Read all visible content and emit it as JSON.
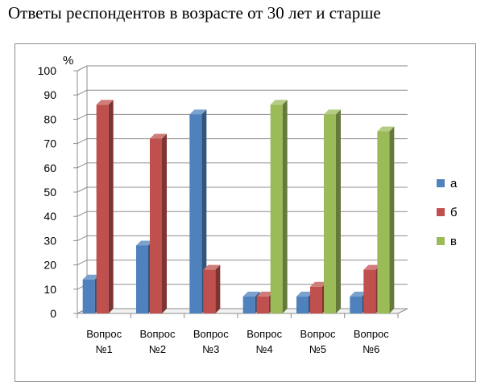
{
  "title": "Ответы респондентов в возрасте от 30 лет и старше",
  "chart_data": {
    "type": "bar",
    "title": "Ответы респондентов в возрасте от 30 лет и старше",
    "ylabel": "%",
    "xlabel": "",
    "ylim": [
      0,
      100
    ],
    "yticks": [
      0,
      10,
      20,
      30,
      40,
      50,
      60,
      70,
      80,
      90,
      100
    ],
    "grid": true,
    "legend_position": "right",
    "categories": [
      [
        "Вопрос",
        "№1"
      ],
      [
        "Вопрос",
        "№2"
      ],
      [
        "Вопрос",
        "№3"
      ],
      [
        "Вопрос",
        "№4"
      ],
      [
        "Вопрос",
        "№5"
      ],
      [
        "Вопрос",
        "№6"
      ]
    ],
    "series": [
      {
        "name": "а",
        "color": "#4f81bd",
        "values": [
          14,
          28,
          82,
          7,
          7,
          7
        ]
      },
      {
        "name": "б",
        "color": "#c0504d",
        "values": [
          86,
          72,
          18,
          7,
          11,
          18
        ]
      },
      {
        "name": "в",
        "color": "#9bbb59",
        "values": [
          0,
          0,
          0,
          86,
          82,
          75
        ]
      }
    ]
  }
}
